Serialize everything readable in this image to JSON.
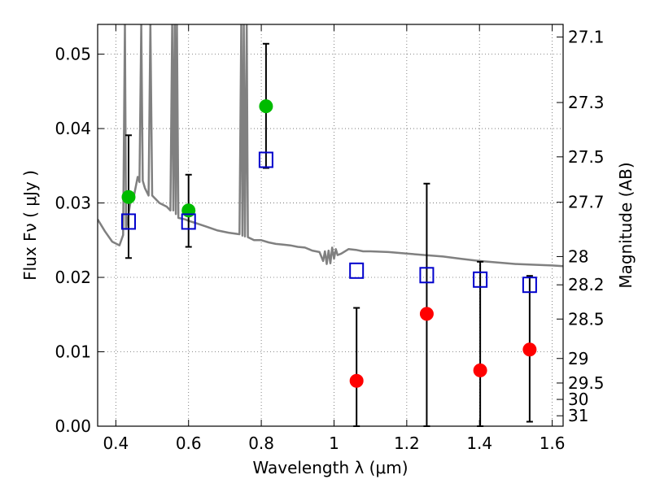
{
  "chart_data": {
    "type": "scatter",
    "xlabel": "Wavelength  λ (μm)",
    "ylabel": "Flux  Fν  ( μJy )",
    "ylabel_right": "Magnitude (AB)",
    "xlim": [
      0.35,
      1.63
    ],
    "ylim": [
      0.0,
      0.054
    ],
    "grid": true,
    "x_ticks": [
      0.4,
      0.6,
      0.8,
      1.0,
      1.2,
      1.4,
      1.6
    ],
    "x_tick_labels": [
      "0.4",
      "0.6",
      "0.8",
      "1",
      "1.2",
      "1.4",
      "1.6"
    ],
    "y_ticks": [
      0.0,
      0.01,
      0.02,
      0.03,
      0.04,
      0.05
    ],
    "y_tick_labels": [
      "0.00",
      "0.01",
      "0.02",
      "0.03",
      "0.04",
      "0.05"
    ],
    "right_ticks": [
      {
        "label": "27.1",
        "flux": 0.0523
      },
      {
        "label": "27.3",
        "flux": 0.0435
      },
      {
        "label": "27.5",
        "flux": 0.0362
      },
      {
        "label": "27.7",
        "flux": 0.0301
      },
      {
        "label": "28",
        "flux": 0.0228
      },
      {
        "label": "28.2",
        "flux": 0.019
      },
      {
        "label": "28.5",
        "flux": 0.0144
      },
      {
        "label": "29",
        "flux": 0.0091
      },
      {
        "label": "29.5",
        "flux": 0.0058
      },
      {
        "label": "30",
        "flux": 0.0036
      },
      {
        "label": "31",
        "flux": 0.0014
      }
    ],
    "series": [
      {
        "kind": "line",
        "color": "#808080",
        "points": [
          [
            0.35,
            0.0278
          ],
          [
            0.37,
            0.0262
          ],
          [
            0.39,
            0.0248
          ],
          [
            0.41,
            0.0243
          ],
          [
            0.42,
            0.0257
          ],
          [
            0.425,
            0.054
          ],
          [
            0.428,
            0.0265
          ],
          [
            0.44,
            0.03
          ],
          [
            0.45,
            0.031
          ],
          [
            0.46,
            0.0335
          ],
          [
            0.465,
            0.0328
          ],
          [
            0.47,
            0.054
          ],
          [
            0.474,
            0.033
          ],
          [
            0.48,
            0.032
          ],
          [
            0.49,
            0.031
          ],
          [
            0.495,
            0.054
          ],
          [
            0.5,
            0.031
          ],
          [
            0.52,
            0.03
          ],
          [
            0.54,
            0.0295
          ],
          [
            0.55,
            0.029
          ],
          [
            0.555,
            0.054
          ],
          [
            0.558,
            0.029
          ],
          [
            0.562,
            0.054
          ],
          [
            0.565,
            0.0285
          ],
          [
            0.568,
            0.054
          ],
          [
            0.572,
            0.028
          ],
          [
            0.59,
            0.0278
          ],
          [
            0.6,
            0.0276
          ],
          [
            0.62,
            0.0273
          ],
          [
            0.65,
            0.0268
          ],
          [
            0.68,
            0.0263
          ],
          [
            0.71,
            0.026
          ],
          [
            0.74,
            0.0258
          ],
          [
            0.745,
            0.054
          ],
          [
            0.748,
            0.0256
          ],
          [
            0.752,
            0.054
          ],
          [
            0.755,
            0.0255
          ],
          [
            0.76,
            0.054
          ],
          [
            0.763,
            0.0254
          ],
          [
            0.78,
            0.025
          ],
          [
            0.8,
            0.025
          ],
          [
            0.82,
            0.0247
          ],
          [
            0.84,
            0.0245
          ],
          [
            0.86,
            0.0244
          ],
          [
            0.88,
            0.0243
          ],
          [
            0.9,
            0.0241
          ],
          [
            0.92,
            0.024
          ],
          [
            0.94,
            0.0236
          ],
          [
            0.96,
            0.0234
          ],
          [
            0.97,
            0.0222
          ],
          [
            0.975,
            0.0235
          ],
          [
            0.98,
            0.0218
          ],
          [
            0.985,
            0.0236
          ],
          [
            0.99,
            0.0219
          ],
          [
            0.995,
            0.024
          ],
          [
            1.0,
            0.0225
          ],
          [
            1.005,
            0.0238
          ],
          [
            1.01,
            0.023
          ],
          [
            1.02,
            0.0232
          ],
          [
            1.04,
            0.0238
          ],
          [
            1.06,
            0.0237
          ],
          [
            1.08,
            0.0235
          ],
          [
            1.1,
            0.0235
          ],
          [
            1.15,
            0.0234
          ],
          [
            1.2,
            0.0232
          ],
          [
            1.25,
            0.023
          ],
          [
            1.3,
            0.0228
          ],
          [
            1.35,
            0.0225
          ],
          [
            1.4,
            0.0222
          ],
          [
            1.45,
            0.022
          ],
          [
            1.5,
            0.0218
          ],
          [
            1.55,
            0.0217
          ],
          [
            1.6,
            0.0216
          ],
          [
            1.63,
            0.0215
          ]
        ]
      },
      {
        "kind": "points",
        "marker": "circle",
        "color": "#00bb00",
        "x": [
          0.435,
          0.6,
          0.813
        ],
        "y": [
          0.0308,
          0.029,
          0.043
        ]
      },
      {
        "kind": "points",
        "marker": "circle",
        "color": "#ff0000",
        "x": [
          1.062,
          1.255,
          1.402,
          1.538
        ],
        "y": [
          0.0061,
          0.0151,
          0.0075,
          0.0103
        ]
      },
      {
        "kind": "points",
        "marker": "open-square",
        "color": "#0000cc",
        "x": [
          0.435,
          0.6,
          0.813,
          1.062,
          1.255,
          1.402,
          1.538
        ],
        "y": [
          0.0275,
          0.0275,
          0.0358,
          0.0209,
          0.0203,
          0.0197,
          0.019
        ]
      }
    ],
    "error_bars": [
      {
        "x": 0.435,
        "low": 0.0226,
        "high": 0.0391
      },
      {
        "x": 0.6,
        "low": 0.0241,
        "high": 0.0338
      },
      {
        "x": 0.813,
        "low": 0.0347,
        "high": 0.0514
      },
      {
        "x": 1.062,
        "low": 0.0,
        "high": 0.0159
      },
      {
        "x": 1.255,
        "low": 0.0,
        "high": 0.0326
      },
      {
        "x": 1.402,
        "low": 0.0,
        "high": 0.0221
      },
      {
        "x": 1.538,
        "low": 0.0006,
        "high": 0.0202
      }
    ]
  }
}
